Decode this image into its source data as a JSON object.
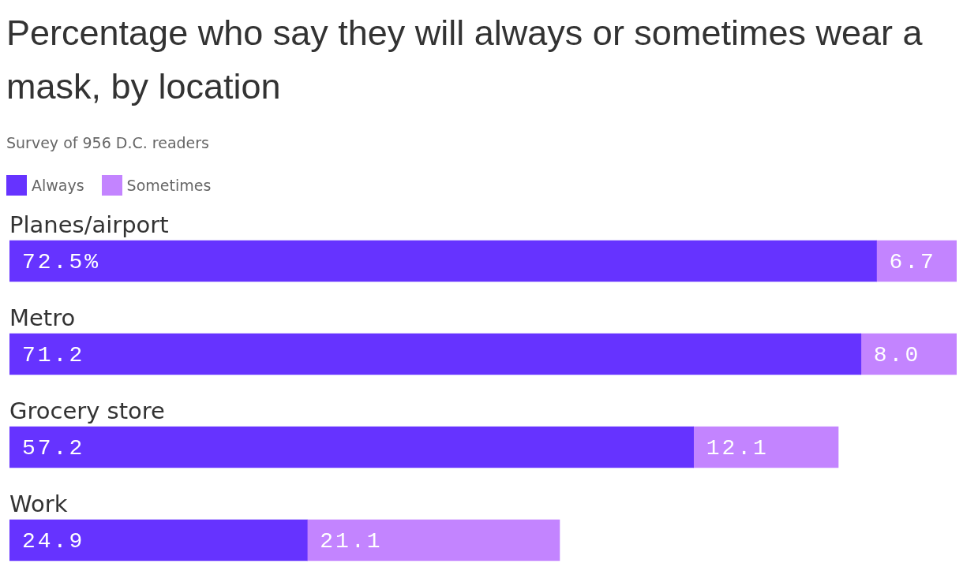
{
  "chart_data": {
    "type": "bar",
    "orientation": "horizontal",
    "stacked": true,
    "title": "Percentage who say they will always or sometimes wear a mask, by location",
    "subtitle": "Survey of 956 D.C. readers",
    "categories": [
      "Planes/airport",
      "Metro",
      "Grocery store",
      "Work"
    ],
    "series": [
      {
        "name": "Always",
        "color": "#6633ff",
        "values": [
          72.5,
          71.2,
          57.2,
          24.9
        ],
        "value_labels": [
          "72.5%",
          "71.2",
          "57.2",
          "24.9"
        ]
      },
      {
        "name": "Sometimes",
        "color": "#c384ff",
        "values": [
          6.7,
          8.0,
          12.1,
          21.1
        ],
        "value_labels": [
          "6.7",
          "8.0",
          "12.1",
          "21.1"
        ]
      }
    ],
    "legend": "top left"
  }
}
